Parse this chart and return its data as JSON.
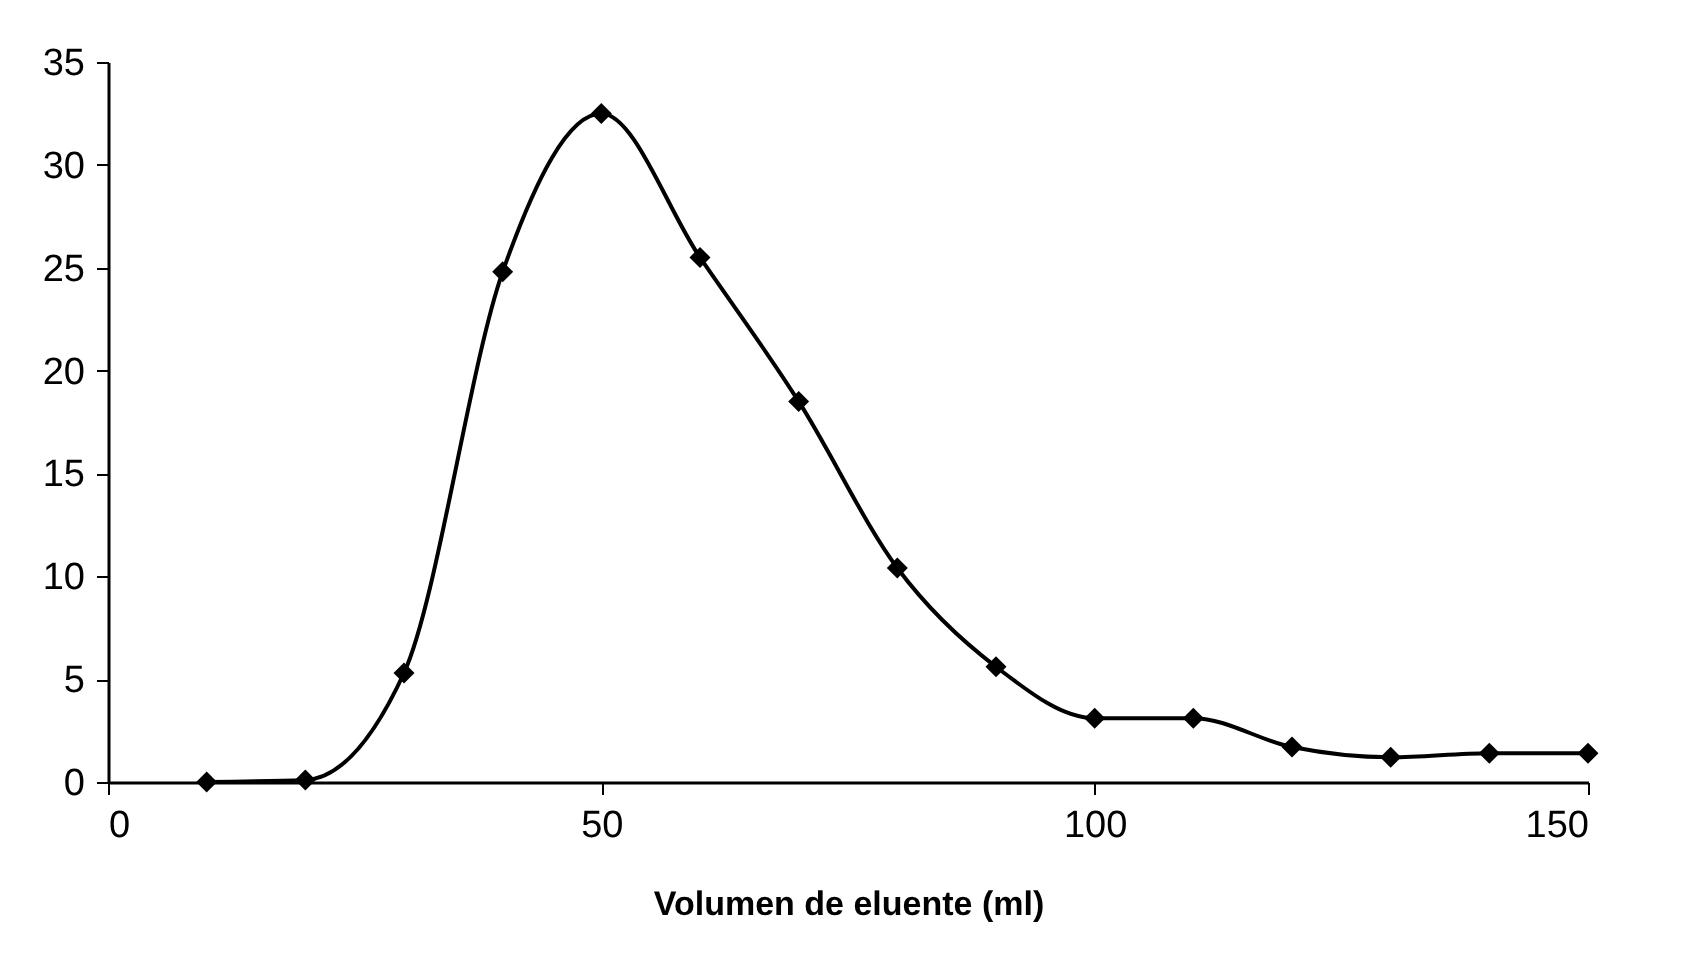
{
  "chart_data": {
    "type": "line",
    "xlabel": "Volumen de eluente (ml)",
    "x": [
      10,
      20,
      30,
      40,
      50,
      60,
      70,
      80,
      90,
      100,
      110,
      120,
      130,
      140,
      150
    ],
    "series": [
      {
        "color": "#000000",
        "values": [
          0,
          0.1,
          5.3,
          24.8,
          32.5,
          25.5,
          18.5,
          10.4,
          5.6,
          3.1,
          3.1,
          1.7,
          1.2,
          1.4,
          1.4
        ]
      }
    ],
    "xlim": [
      0,
      150
    ],
    "xticks": [
      0,
      50,
      100,
      150
    ],
    "ylim": [
      0,
      35
    ],
    "yticks": [
      0,
      5,
      10,
      15,
      20,
      25,
      30,
      35
    ],
    "grid": false,
    "marker": "diamond",
    "line_style": "solid"
  }
}
